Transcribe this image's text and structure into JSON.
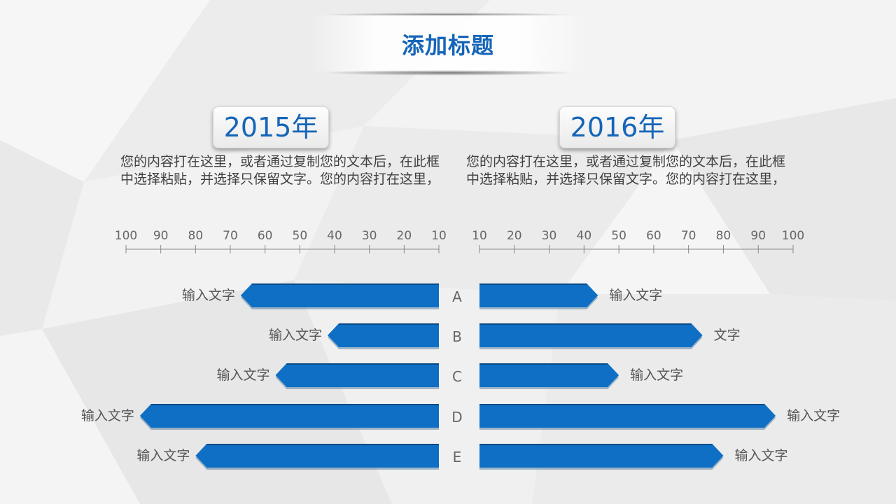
{
  "title": "添加标题",
  "left": {
    "year": "2015年",
    "paragraph": "您的内容打在这里，或者通过复制您的文本后，在此框中选择粘贴，并选择只保留文字。您的内容打在这里，"
  },
  "right": {
    "year": "2016年",
    "paragraph": "您的内容打在这里，或者通过复制您的文本后，在此框中选择粘贴，并选择只保留文字。您的内容打在这里，"
  },
  "colors": {
    "accent": "#1565b8",
    "bar": "#0e6fc4",
    "bar_shadow": "#0a4a86",
    "text": "#555555"
  },
  "chart_data": {
    "type": "bar",
    "categories": [
      "A",
      "B",
      "C",
      "D",
      "E"
    ],
    "series": [
      {
        "values": [
          67,
          42,
          57,
          96,
          80
        ],
        "labels": [
          "输入文字",
          "输入文字",
          "输入文字",
          "输入文字",
          "输入文字"
        ]
      },
      {
        "values": [
          44,
          74,
          50,
          95,
          80
        ],
        "labels": [
          "输入文字",
          "文字",
          "输入文字",
          "输入文字",
          "输入文字"
        ]
      }
    ],
    "left_ticks": [
      100,
      90,
      80,
      70,
      60,
      50,
      40,
      30,
      20,
      10
    ],
    "right_ticks": [
      10,
      20,
      30,
      40,
      50,
      60,
      70,
      80,
      90,
      100
    ],
    "xlim": [
      10,
      100
    ]
  }
}
